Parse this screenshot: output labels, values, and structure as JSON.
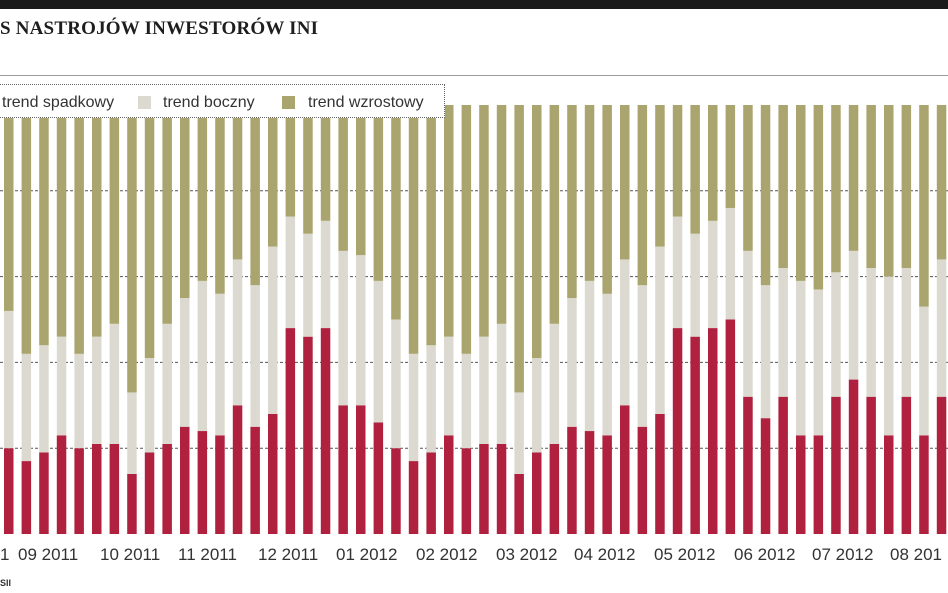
{
  "title": "S NASTROJÓW INWESTORÓW INI",
  "source": "SII",
  "colors": {
    "spadkowy": "#b0213f",
    "boczny": "#dcdad0",
    "wzrostowy": "#aaa56e"
  },
  "legend": [
    {
      "label": "trend spadkowy",
      "color": "#b0213f"
    },
    {
      "label": "trend boczny",
      "color": "#dcdad0"
    },
    {
      "label": "trend wzrostowy",
      "color": "#aaa56e"
    }
  ],
  "chart_data": {
    "type": "bar",
    "stacked": true,
    "ylim": [
      0,
      100
    ],
    "grid": true,
    "legend_position": "top-left",
    "tick_labels": [
      "1",
      "09 2011",
      "10 2011",
      "11 2011",
      "12 2011",
      "01 2012",
      "02 2012",
      "03 2012",
      "04 2012",
      "05 2012",
      "06 2012",
      "07 2012",
      "08 201"
    ],
    "series": [
      {
        "name": "trend spadkowy",
        "values": [
          20,
          17,
          19,
          23,
          20,
          21,
          21,
          14,
          19,
          21,
          25,
          24,
          23,
          30,
          25,
          28,
          48,
          46,
          48,
          30,
          30,
          26,
          20,
          17,
          19,
          23,
          20,
          21,
          21,
          14,
          19,
          21,
          25,
          24,
          23,
          30,
          25,
          28,
          48,
          46,
          48,
          50,
          32,
          27,
          32,
          23,
          23,
          32,
          36,
          32,
          23,
          32,
          23,
          32
        ]
      },
      {
        "name": "trend boczny",
        "values": [
          32,
          25,
          25,
          23,
          22,
          25,
          28,
          19,
          22,
          28,
          30,
          35,
          33,
          34,
          33,
          39,
          26,
          24,
          25,
          36,
          35,
          33,
          30,
          25,
          25,
          23,
          22,
          25,
          28,
          19,
          22,
          28,
          30,
          35,
          33,
          34,
          33,
          39,
          26,
          24,
          25,
          26,
          34,
          31,
          30,
          36,
          34,
          29,
          30,
          30,
          37,
          30,
          30,
          32
        ]
      },
      {
        "name": "trend wzrostowy",
        "values": [
          48,
          58,
          56,
          54,
          58,
          54,
          51,
          67,
          59,
          51,
          45,
          41,
          44,
          36,
          42,
          33,
          26,
          30,
          27,
          34,
          35,
          41,
          50,
          58,
          56,
          54,
          58,
          54,
          51,
          67,
          59,
          51,
          45,
          41,
          44,
          36,
          42,
          33,
          26,
          30,
          27,
          24,
          34,
          42,
          38,
          41,
          43,
          39,
          34,
          38,
          40,
          38,
          47,
          36
        ]
      }
    ]
  }
}
